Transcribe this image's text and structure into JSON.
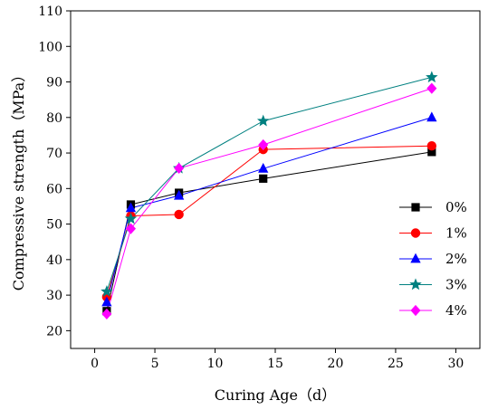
{
  "chart_data": {
    "type": "line",
    "xlabel": "Curing Age（d）",
    "ylabel": "Compressive strength（MPa）",
    "xlim": [
      -2,
      32
    ],
    "ylim": [
      15,
      110
    ],
    "xticks": [
      0,
      5,
      10,
      15,
      20,
      25,
      30
    ],
    "yticks": [
      20,
      30,
      40,
      50,
      60,
      70,
      80,
      90,
      100,
      110
    ],
    "grid": false,
    "legend_position": "right",
    "x": [
      1,
      3,
      7,
      14,
      28
    ],
    "series": [
      {
        "name": "0%",
        "values": [
          25.5,
          55.5,
          58.8,
          62.8,
          70.3
        ],
        "color": "#000000",
        "marker": "square"
      },
      {
        "name": "1%",
        "values": [
          29.5,
          52.3,
          52.7,
          71.0,
          72.0
        ],
        "color": "#ff0000",
        "marker": "circle"
      },
      {
        "name": "2%",
        "values": [
          28.0,
          54.5,
          58.0,
          65.6,
          80.0
        ],
        "color": "#0000ff",
        "marker": "triangle"
      },
      {
        "name": "3%",
        "values": [
          31.0,
          51.5,
          65.7,
          79.0,
          91.3
        ],
        "color": "#008080",
        "marker": "star"
      },
      {
        "name": "4%",
        "values": [
          24.7,
          48.7,
          65.7,
          72.3,
          88.2
        ],
        "color": "#ff00ff",
        "marker": "diamond"
      }
    ]
  }
}
